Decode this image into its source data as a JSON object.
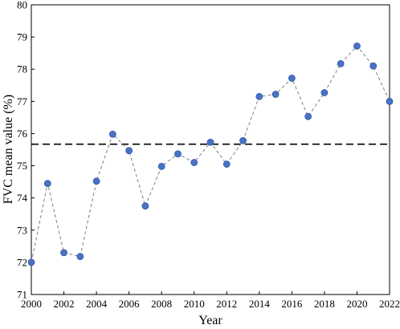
{
  "chart_data": {
    "type": "line",
    "xlabel": "Year",
    "ylabel": "FVC mean value (%)",
    "xlim": [
      2000,
      2022
    ],
    "ylim": [
      71,
      80
    ],
    "x_ticks": [
      "2000",
      "2002",
      "2004",
      "2006",
      "2008",
      "2010",
      "2012",
      "2014",
      "2016",
      "2018",
      "2020",
      "2022"
    ],
    "y_ticks": [
      "71",
      "72",
      "73",
      "74",
      "75",
      "76",
      "77",
      "78",
      "79",
      "80"
    ],
    "grid": false,
    "series": [
      {
        "x": [
          2000,
          2001,
          2002,
          2003,
          2004,
          2005,
          2006,
          2007,
          2008,
          2009,
          2010,
          2011,
          2012,
          2013,
          2014,
          2015,
          2016,
          2017,
          2018,
          2019,
          2020,
          2021,
          2022
        ],
        "values": [
          72.0,
          74.45,
          72.3,
          72.18,
          74.52,
          75.98,
          75.47,
          73.75,
          74.98,
          75.37,
          75.1,
          75.73,
          75.05,
          75.78,
          77.15,
          77.22,
          77.72,
          76.53,
          77.27,
          78.17,
          78.72,
          78.1,
          77.0
        ]
      }
    ],
    "reference_line": {
      "y": 75.67
    },
    "colors": {
      "marker": "#4a72c4",
      "marker_edge": "#2f58a8",
      "line": "#808080",
      "reference": "#000000"
    }
  }
}
